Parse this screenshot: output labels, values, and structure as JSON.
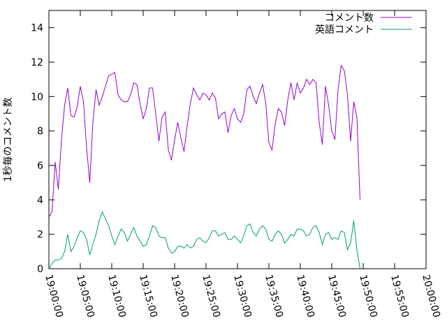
{
  "chart_data": {
    "type": "line",
    "title": "",
    "xlabel": "",
    "ylabel": "1秒毎のコメント数",
    "xlim": [
      "19:00:00",
      "20:00:00"
    ],
    "ylim": [
      0,
      15
    ],
    "grid": false,
    "legend": "top-right",
    "xticks": [
      "19:00:00",
      "19:05:00",
      "19:10:00",
      "19:15:00",
      "19:20:00",
      "19:25:00",
      "19:30:00",
      "19:35:00",
      "19:40:00",
      "19:45:00",
      "19:50:00",
      "19:55:00",
      "20:00:00"
    ],
    "yticks": [
      0,
      2,
      4,
      6,
      8,
      10,
      12,
      14
    ],
    "x_step_seconds": 30,
    "series": [
      {
        "name": "コメント数",
        "color": "#9400d3",
        "values": [
          3.0,
          3.3,
          6.2,
          4.6,
          7.5,
          9.5,
          10.5,
          8.9,
          8.8,
          9.4,
          10.6,
          9.7,
          7.0,
          5.0,
          8.5,
          10.4,
          9.5,
          10.0,
          10.6,
          11.2,
          11.3,
          11.4,
          10.1,
          9.8,
          9.7,
          9.7,
          10.1,
          10.8,
          10.7,
          9.6,
          8.7,
          9.3,
          10.5,
          10.5,
          9.0,
          7.4,
          8.8,
          9.1,
          6.9,
          6.3,
          7.5,
          8.5,
          7.6,
          6.8,
          8.3,
          9.6,
          10.5,
          10.1,
          9.8,
          10.2,
          10.1,
          9.8,
          10.2,
          9.9,
          8.7,
          9.0,
          9.1,
          7.9,
          8.9,
          9.3,
          8.7,
          8.5,
          9.0,
          10.4,
          10.6,
          10.0,
          9.6,
          10.2,
          10.7,
          9.6,
          7.3,
          6.9,
          8.4,
          9.3,
          9.1,
          8.3,
          9.8,
          10.8,
          9.8,
          10.8,
          10.2,
          10.5,
          11.0,
          10.7,
          11.0,
          10.8,
          8.5,
          7.2,
          10.6,
          9.5,
          8.0,
          7.5,
          10.4,
          11.8,
          11.5,
          10.1,
          7.4,
          9.7,
          8.8,
          4.0
        ]
      },
      {
        "name": "英語コメント",
        "color": "#009e73",
        "values": [
          0.0,
          0.3,
          0.5,
          0.5,
          0.6,
          1.0,
          2.0,
          1.0,
          1.3,
          1.8,
          2.2,
          2.1,
          1.7,
          0.8,
          1.4,
          2.0,
          2.8,
          3.3,
          2.9,
          2.5,
          1.9,
          1.4,
          1.9,
          2.3,
          2.1,
          1.6,
          2.0,
          2.4,
          1.9,
          1.6,
          1.3,
          1.4,
          1.9,
          2.5,
          2.4,
          1.9,
          1.8,
          1.8,
          1.2,
          0.9,
          1.0,
          1.3,
          1.3,
          1.2,
          1.4,
          1.2,
          1.3,
          1.7,
          1.8,
          1.6,
          1.5,
          1.8,
          2.2,
          2.2,
          1.9,
          2.0,
          2.1,
          1.7,
          1.7,
          1.9,
          1.7,
          1.5,
          1.9,
          2.5,
          2.6,
          2.1,
          1.9,
          2.3,
          2.5,
          2.3,
          1.7,
          1.6,
          2.0,
          2.2,
          2.0,
          1.5,
          1.7,
          2.0,
          1.9,
          2.3,
          2.3,
          2.2,
          1.9,
          2.0,
          2.4,
          2.5,
          2.1,
          1.4,
          2.0,
          2.1,
          1.7,
          1.8,
          1.7,
          2.2,
          2.1,
          1.1,
          1.5,
          2.8,
          1.1,
          0.0
        ]
      }
    ]
  }
}
